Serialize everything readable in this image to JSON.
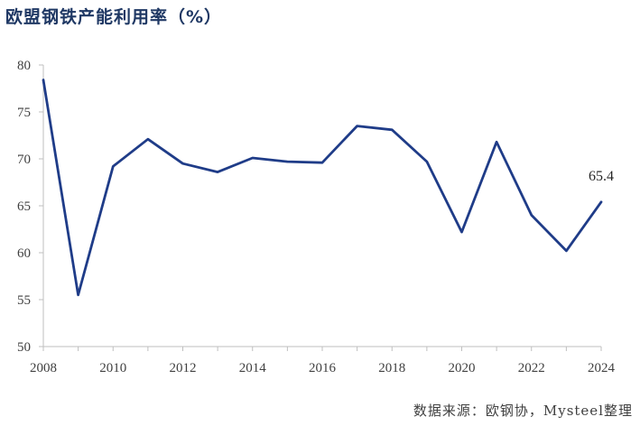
{
  "chart_data": {
    "type": "line",
    "title": "欧盟钢铁产能利用率（%）",
    "x": [
      2008,
      2009,
      2010,
      2011,
      2012,
      2013,
      2014,
      2015,
      2016,
      2017,
      2018,
      2019,
      2020,
      2021,
      2022,
      2023,
      2024
    ],
    "series": [
      {
        "values": [
          78.4,
          55.5,
          69.2,
          72.1,
          69.5,
          68.6,
          70.1,
          69.7,
          69.6,
          73.5,
          73.1,
          69.7,
          62.2,
          71.8,
          64.0,
          60.2,
          65.4
        ]
      }
    ],
    "xticks": [
      "2008",
      "2010",
      "2012",
      "2014",
      "2016",
      "2018",
      "2020",
      "2022",
      "2024"
    ],
    "yticks": [
      "50",
      "55",
      "60",
      "65",
      "70",
      "75",
      "80"
    ],
    "ylim": [
      50,
      80
    ],
    "xlim": [
      2008,
      2024
    ],
    "xlabel": "",
    "ylabel": "",
    "annotations": [
      {
        "x": 2024,
        "text": "65.4"
      }
    ],
    "grid": false,
    "line_color": "#1f3c88",
    "source": "数据来源：欧钢协，Mysteel整理"
  }
}
